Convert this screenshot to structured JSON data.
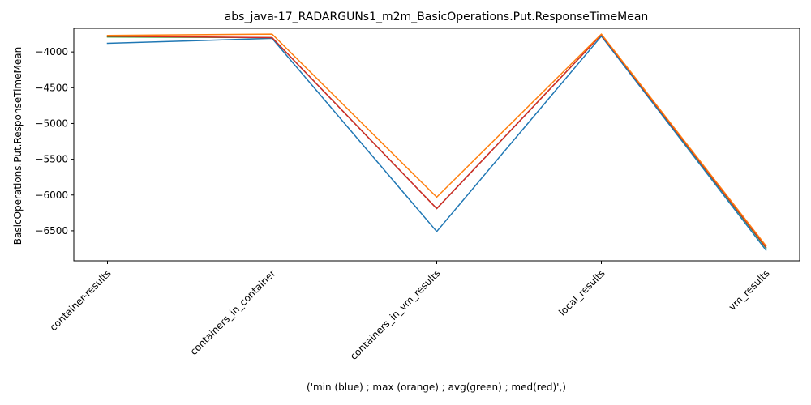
{
  "chart_data": {
    "type": "line",
    "title": "abs_java-17_RADARGUNs1_m2m_BasicOperations.Put.ResponseTimeMean",
    "xlabel": "('min (blue) ; max (orange) ; avg(green) ; med(red)',)",
    "ylabel": "BasicOperations.Put.ResponseTimeMean",
    "categories": [
      "container-results",
      "containers_in_container",
      "containers_in_vm_results",
      "local_results",
      "vm_results"
    ],
    "ylim": [
      -6920,
      -3670
    ],
    "yticks": [
      -4000,
      -4500,
      -5000,
      -5500,
      -6000,
      -6500
    ],
    "grid": false,
    "series": [
      {
        "color": "#1f77b4",
        "values": [
          -3880,
          -3810,
          -6510,
          -3780,
          -6770
        ]
      },
      {
        "color": "#2ca02c",
        "values": [
          -3790,
          -3800,
          -6190,
          -3760,
          -6740
        ]
      },
      {
        "color": "#d62728",
        "values": [
          -3780,
          -3800,
          -6190,
          -3760,
          -6730
        ]
      },
      {
        "color": "#ff7f0e",
        "values": [
          -3770,
          -3750,
          -6030,
          -3750,
          -6710
        ]
      }
    ]
  }
}
